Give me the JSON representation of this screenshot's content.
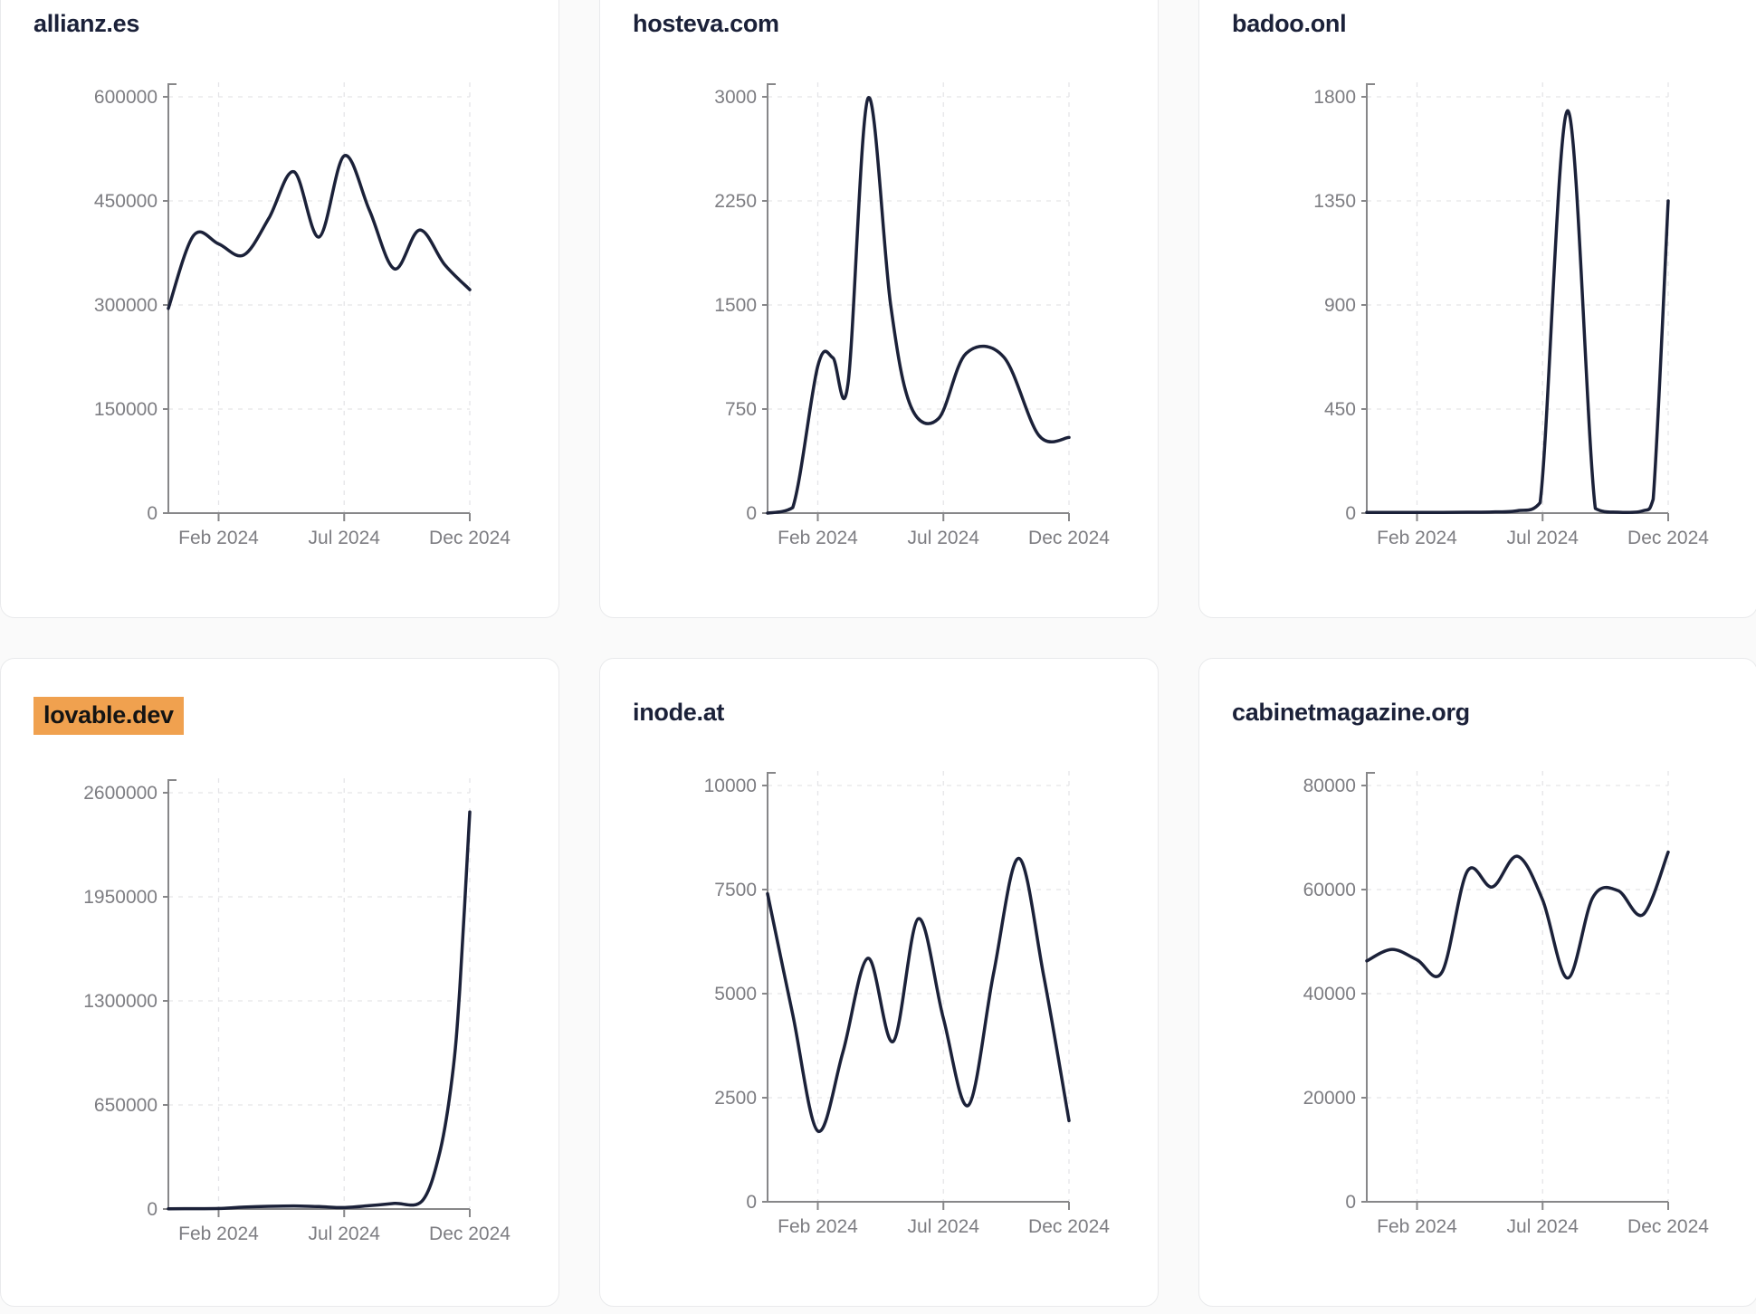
{
  "page": {
    "background": "#fafafa",
    "card_background": "#ffffff",
    "card_border_color": "#e9eaec"
  },
  "style": {
    "line_color": "#1b2139",
    "title_color": "#1b2139",
    "axis_color": "#878789",
    "grid_color": "#e5e5e8",
    "tick_label_color": "#7d7d82",
    "highlight_color": "#f0a14f",
    "highlight_text_color": "#141414"
  },
  "x_ticks": [
    {
      "label": "Feb 2024",
      "m": 2
    },
    {
      "label": "Jul 2024",
      "m": 7
    },
    {
      "label": "Dec 2024",
      "m": 12
    }
  ],
  "chart_data": [
    {
      "type": "line",
      "title": "allianz.es",
      "title_highlighted": false,
      "ylim": [
        0,
        600000
      ],
      "y_ticks": [
        0,
        150000,
        300000,
        450000,
        600000
      ],
      "x_note": "x = months after Dec 2023; curve spans y-axis (Dec 2023) to Dec 2024",
      "points": [
        [
          0,
          295000
        ],
        [
          1,
          400000
        ],
        [
          2,
          388000
        ],
        [
          3,
          372000
        ],
        [
          4,
          425000
        ],
        [
          5,
          492000
        ],
        [
          6,
          398000
        ],
        [
          7,
          515000
        ],
        [
          8,
          437000
        ],
        [
          9,
          352000
        ],
        [
          10,
          408000
        ],
        [
          11,
          358000
        ],
        [
          12,
          322000
        ]
      ]
    },
    {
      "type": "line",
      "title": "hosteva.com",
      "title_highlighted": false,
      "ylim": [
        0,
        3000
      ],
      "y_ticks": [
        0,
        750,
        1500,
        2250,
        3000
      ],
      "x_note": "x = months after Dec 2023",
      "points": [
        [
          0,
          0
        ],
        [
          1,
          40
        ],
        [
          2,
          1060
        ],
        [
          2.6,
          1120
        ],
        [
          3.2,
          930
        ],
        [
          4,
          2990
        ],
        [
          4.9,
          1500
        ],
        [
          5.7,
          770
        ],
        [
          6.8,
          680
        ],
        [
          7.9,
          1150
        ],
        [
          9.4,
          1125
        ],
        [
          10.8,
          560
        ],
        [
          12,
          545
        ]
      ]
    },
    {
      "type": "line",
      "title": "badoo.onl",
      "title_highlighted": false,
      "ylim": [
        0,
        1800
      ],
      "y_ticks": [
        0,
        450,
        900,
        1350,
        1800
      ],
      "x_note": "x = months after Dec 2023",
      "points": [
        [
          0,
          3
        ],
        [
          1,
          3
        ],
        [
          2,
          3
        ],
        [
          3,
          3
        ],
        [
          4,
          4
        ],
        [
          5,
          5
        ],
        [
          6,
          10
        ],
        [
          6.9,
          45
        ],
        [
          8,
          1740
        ],
        [
          9.1,
          20
        ],
        [
          10,
          4
        ],
        [
          11,
          10
        ],
        [
          11.4,
          60
        ],
        [
          12,
          1350
        ]
      ]
    },
    {
      "type": "line",
      "title": "lovable.dev",
      "title_highlighted": true,
      "ylim": [
        0,
        2600000
      ],
      "y_ticks": [
        0,
        650000,
        1300000,
        1950000,
        2600000
      ],
      "x_note": "x = months after Dec 2023",
      "points": [
        [
          0,
          1500
        ],
        [
          1,
          2500
        ],
        [
          2,
          3500
        ],
        [
          3,
          12000
        ],
        [
          4,
          17000
        ],
        [
          5,
          19000
        ],
        [
          6,
          15000
        ],
        [
          7,
          9000
        ],
        [
          8,
          21000
        ],
        [
          9,
          35000
        ],
        [
          10.1,
          50000
        ],
        [
          10.8,
          350000
        ],
        [
          11.3,
          825000
        ],
        [
          11.6,
          1370000
        ],
        [
          12,
          2480000
        ]
      ]
    },
    {
      "type": "line",
      "title": "inode.at",
      "title_highlighted": false,
      "ylim": [
        0,
        10000
      ],
      "y_ticks": [
        0,
        2500,
        5000,
        7500,
        10000
      ],
      "x_note": "x = months after Dec 2023",
      "points": [
        [
          0,
          7400
        ],
        [
          1,
          4500
        ],
        [
          2,
          1700
        ],
        [
          3,
          3600
        ],
        [
          4,
          5850
        ],
        [
          5,
          3850
        ],
        [
          6,
          6800
        ],
        [
          7,
          4400
        ],
        [
          8,
          2320
        ],
        [
          9,
          5500
        ],
        [
          10,
          8250
        ],
        [
          11,
          5400
        ],
        [
          12,
          1950
        ]
      ]
    },
    {
      "type": "line",
      "title": "cabinetmagazine.org",
      "title_highlighted": false,
      "ylim": [
        0,
        80000
      ],
      "y_ticks": [
        0,
        20000,
        40000,
        60000,
        80000
      ],
      "x_note": "x = months after Dec 2023",
      "points": [
        [
          0,
          46300
        ],
        [
          1,
          48500
        ],
        [
          2,
          46500
        ],
        [
          3,
          44200
        ],
        [
          4,
          63500
        ],
        [
          5,
          60500
        ],
        [
          6,
          66400
        ],
        [
          7,
          58000
        ],
        [
          8,
          43000
        ],
        [
          9,
          58500
        ],
        [
          10,
          59800
        ],
        [
          11,
          55200
        ],
        [
          12,
          67200
        ]
      ]
    }
  ]
}
